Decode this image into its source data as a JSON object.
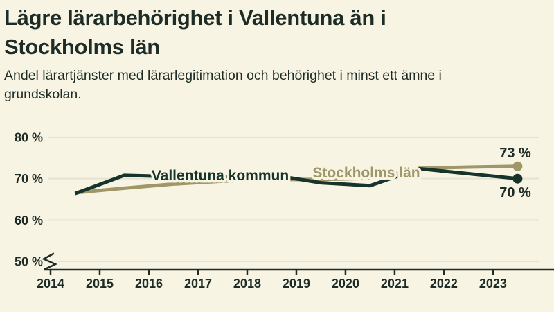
{
  "header": {
    "title": "Lägre lärarbehörighet i Vallentuna än i\nStockholms län",
    "subtitle": "Andel lärartjänster med lärarlegitimation och behörighet i minst ett ämne i\ngrundskolan."
  },
  "colors": {
    "background": "#f8f4e3",
    "ink": "#1d2c26",
    "gridline": "#e6e2d2",
    "dark_series": "#17342c",
    "olive_series": "#a09768"
  },
  "chart_data": {
    "type": "line",
    "title": "Lägre lärarbehörighet i Vallentuna än i Stockholms län",
    "subtitle": "Andel lärartjänster med lärarlegitimation och behörighet i minst ett ämne i grundskolan.",
    "x_tick_labels": [
      "2014",
      "2015",
      "2016",
      "2017",
      "2018",
      "2019",
      "2020",
      "2021",
      "2022",
      "2023"
    ],
    "x_plot_offset_years": 0.5,
    "y_ticks": [
      {
        "value": 50,
        "label": "50 %"
      },
      {
        "value": 60,
        "label": "60 %"
      },
      {
        "value": 70,
        "label": "70 %"
      },
      {
        "value": 80,
        "label": "80 %"
      }
    ],
    "ylim": [
      50,
      80
    ],
    "y_axis_break_below_50": true,
    "grid": true,
    "legend_position": "inline-labels-on-lines",
    "series": [
      {
        "name": "Stockholms län",
        "color": "#a09768",
        "values": [
          66.6,
          67.7,
          68.7,
          69.4,
          69.8,
          69.8,
          70.1,
          72.5,
          72.8,
          73.0
        ],
        "end_label": "73 %"
      },
      {
        "name": "Vallentuna kommun",
        "color": "#17342c",
        "values": [
          66.4,
          70.8,
          70.5,
          70.4,
          70.9,
          69.0,
          68.3,
          72.4,
          71.2,
          70.0
        ],
        "end_label": "70 %"
      }
    ]
  }
}
